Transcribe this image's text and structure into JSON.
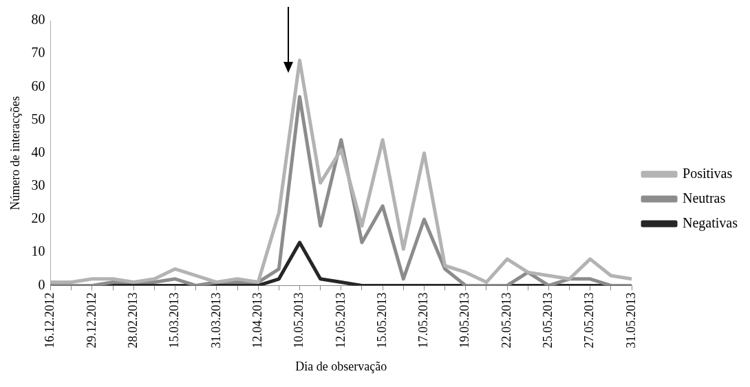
{
  "chart_data": {
    "type": "line",
    "xlabel": "Dia de observação",
    "ylabel": "Número de interacções",
    "categories": [
      "16.12.2012",
      null,
      "29.12.2012",
      null,
      "28.02.2013",
      null,
      "15.03.2013",
      null,
      "31.03.2013",
      null,
      "12.04.2013",
      null,
      "10.05.2013",
      null,
      "12.05.2013",
      null,
      "15.05.2013",
      null,
      "17.05.2013",
      null,
      "19.05.2013",
      null,
      "22.05.2013",
      null,
      "25.05.2013",
      null,
      "27.05.2013",
      null,
      "31.05.2013"
    ],
    "series": [
      {
        "name": "Positivas",
        "color": "#b3b3b3",
        "values": [
          1,
          1,
          2,
          2,
          1,
          2,
          5,
          3,
          1,
          2,
          1,
          22,
          68,
          31,
          41,
          18,
          44,
          11,
          40,
          6,
          4,
          1,
          8,
          4,
          3,
          2,
          8,
          3,
          2
        ]
      },
      {
        "name": "Neutras",
        "color": "#8c8c8c",
        "values": [
          0,
          0,
          0,
          1,
          1,
          1,
          2,
          0,
          1,
          1,
          1,
          5,
          57,
          18,
          44,
          13,
          24,
          2,
          20,
          5,
          0,
          0,
          0,
          4,
          0,
          2,
          2,
          0,
          0
        ]
      },
      {
        "name": "Negativas",
        "color": "#262626",
        "values": [
          0,
          0,
          0,
          0,
          0,
          0,
          0,
          0,
          0,
          0,
          0,
          2,
          13,
          2,
          1,
          0,
          0,
          0,
          0,
          0,
          0,
          0,
          0,
          0,
          0,
          0,
          0,
          0,
          0
        ]
      }
    ],
    "ylim": [
      0,
      80
    ],
    "yticks": [
      0,
      10,
      20,
      30,
      40,
      50,
      60,
      70,
      80
    ],
    "legend": "right",
    "marker": "none",
    "line_style": "solid"
  }
}
